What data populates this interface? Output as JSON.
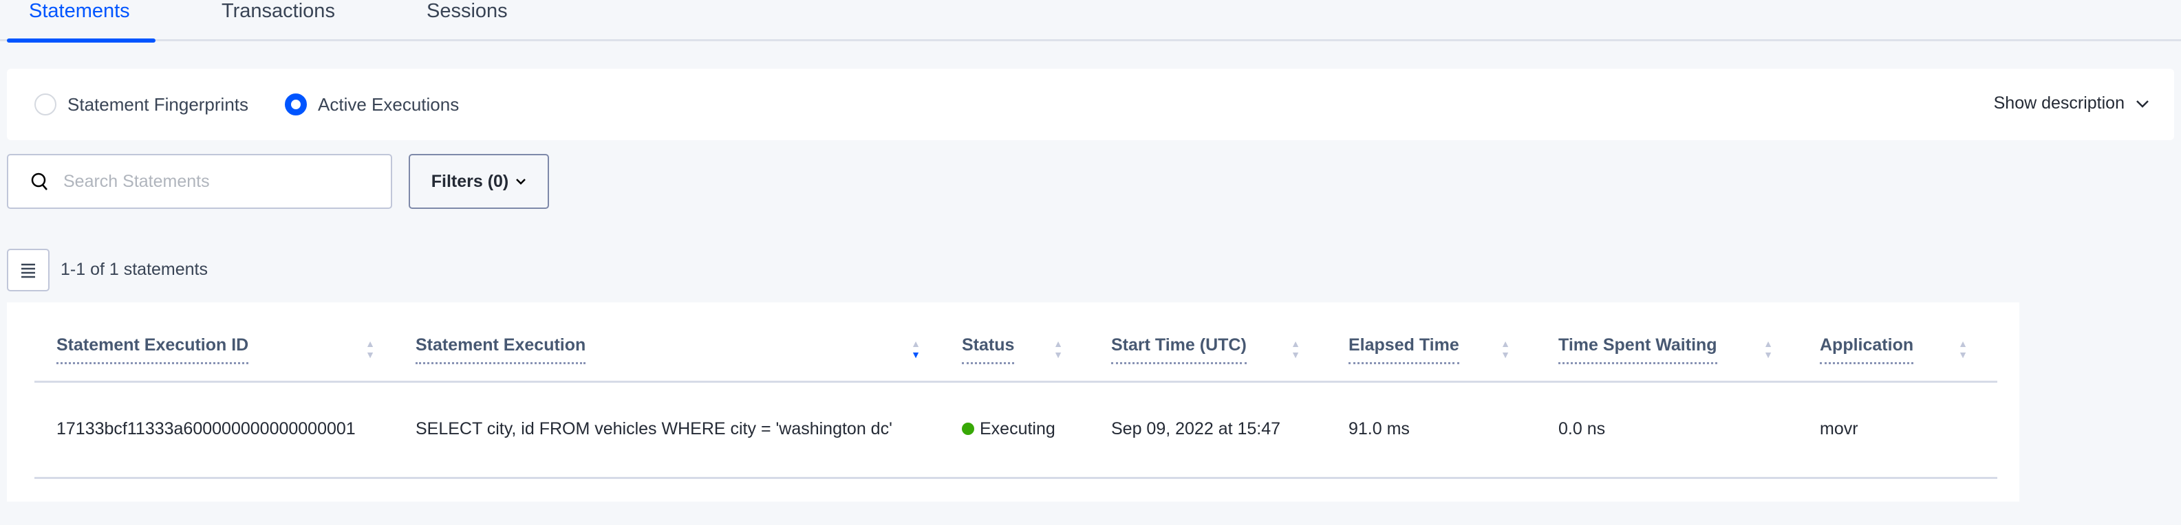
{
  "tabs": [
    {
      "label": "Statements",
      "active": true
    },
    {
      "label": "Transactions"
    },
    {
      "label": "Sessions"
    }
  ],
  "view_toggle": {
    "options": [
      "Statement Fingerprints",
      "Active Executions"
    ],
    "selected": "Active Executions"
  },
  "show_description": "Show description",
  "search": {
    "placeholder": "Search Statements",
    "value": ""
  },
  "filters_label": "Filters (0)",
  "result_count": "1-1 of 1 statements",
  "accent_color": "#0055ff",
  "table": {
    "columns": [
      "Statement Execution ID",
      "Statement Execution",
      "Status",
      "Start Time (UTC)",
      "Elapsed Time",
      "Time Spent Waiting",
      "Application"
    ],
    "sorted_column": "Statement Execution",
    "sort_direction": "descending",
    "rows": [
      [
        "17133bcf11333a600000000000000001",
        "SELECT city, id FROM vehicles WHERE city = 'washington dc'",
        "Executing",
        "Sep 09, 2022 at 15:47",
        "91.0 ms",
        "0.0 ns",
        "movr"
      ]
    ],
    "status_color": "#37a806"
  }
}
